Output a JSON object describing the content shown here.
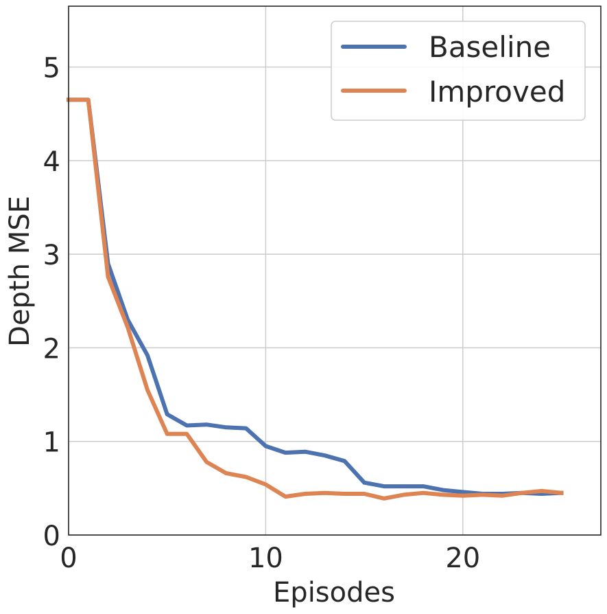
{
  "chart_data": {
    "type": "line",
    "title": "",
    "xlabel": "Episodes",
    "ylabel": "Depth MSE",
    "xlim": [
      0,
      27
    ],
    "ylim": [
      0,
      5.65
    ],
    "xticks": [
      0,
      10,
      20
    ],
    "yticks": [
      0,
      1,
      2,
      3,
      4,
      5
    ],
    "grid": true,
    "legend_position": "top-right",
    "x": [
      0,
      1,
      2,
      3,
      4,
      5,
      6,
      7,
      8,
      9,
      10,
      11,
      12,
      13,
      14,
      15,
      16,
      17,
      18,
      19,
      20,
      21,
      22,
      23,
      24,
      25
    ],
    "series": [
      {
        "name": "Baseline",
        "color": "#4c72b0",
        "values": [
          4.65,
          4.65,
          2.9,
          2.3,
          1.92,
          1.29,
          1.17,
          1.18,
          1.15,
          1.14,
          0.95,
          0.88,
          0.89,
          0.85,
          0.79,
          0.56,
          0.52,
          0.52,
          0.52,
          0.48,
          0.46,
          0.44,
          0.44,
          0.45,
          0.44,
          0.45
        ]
      },
      {
        "name": "Improved",
        "color": "#dd8452",
        "values": [
          4.65,
          4.65,
          2.76,
          2.22,
          1.55,
          1.08,
          1.08,
          0.78,
          0.66,
          0.62,
          0.54,
          0.41,
          0.44,
          0.45,
          0.44,
          0.44,
          0.39,
          0.43,
          0.45,
          0.43,
          0.42,
          0.43,
          0.42,
          0.45,
          0.47,
          0.45
        ]
      }
    ]
  }
}
